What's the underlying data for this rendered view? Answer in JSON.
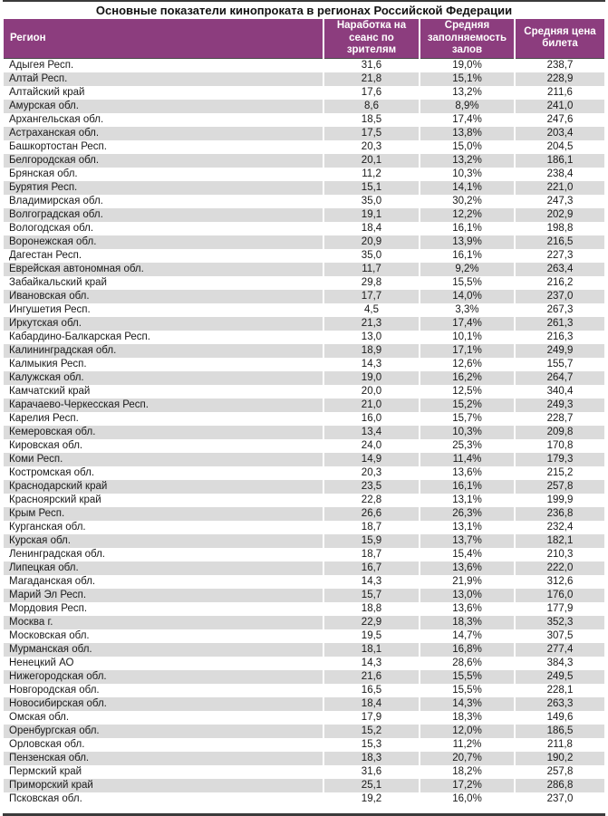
{
  "title": "Основные показатели кинопроката в регионах Российской Федерации",
  "colors": {
    "header_bg": "#8c3d7e",
    "header_text": "#ffffff",
    "stripe": "#dbdbdb",
    "rule_dark": "#3b3b3b"
  },
  "chart_data": {
    "type": "table",
    "title": "Основные показатели кинопроката в регионах Российской Федерации",
    "columns": [
      "Регион",
      "Наработка на сеанс по зрителям",
      "Средняя заполняемость залов",
      "Средняя цена билета"
    ],
    "rows": [
      [
        "Адыгея Респ.",
        "31,6",
        "19,0%",
        "238,7"
      ],
      [
        "Алтай Респ.",
        "21,8",
        "15,1%",
        "228,9"
      ],
      [
        "Алтайский край",
        "17,6",
        "13,2%",
        "211,6"
      ],
      [
        "Амурская обл.",
        "8,6",
        "8,9%",
        "241,0"
      ],
      [
        "Архангельская обл.",
        "18,5",
        "17,4%",
        "247,6"
      ],
      [
        "Астраханская обл.",
        "17,5",
        "13,8%",
        "203,4"
      ],
      [
        "Башкортостан Респ.",
        "20,3",
        "15,0%",
        "204,5"
      ],
      [
        "Белгородская обл.",
        "20,1",
        "13,2%",
        "186,1"
      ],
      [
        "Брянская обл.",
        "11,2",
        "10,3%",
        "238,4"
      ],
      [
        "Бурятия Респ.",
        "15,1",
        "14,1%",
        "221,0"
      ],
      [
        "Владимирская обл.",
        "35,0",
        "30,2%",
        "247,3"
      ],
      [
        "Волгоградская обл.",
        "19,1",
        "12,2%",
        "202,9"
      ],
      [
        "Вологодская обл.",
        "18,4",
        "16,1%",
        "198,8"
      ],
      [
        "Воронежская обл.",
        "20,9",
        "13,9%",
        "216,5"
      ],
      [
        "Дагестан Респ.",
        "35,0",
        "16,1%",
        "227,3"
      ],
      [
        "Еврейская автономная обл.",
        "11,7",
        "9,2%",
        "263,4"
      ],
      [
        "Забайкальский край",
        "29,8",
        "15,5%",
        "216,2"
      ],
      [
        "Ивановская обл.",
        "17,7",
        "14,0%",
        "237,0"
      ],
      [
        "Ингушетия Респ.",
        "4,5",
        "3,3%",
        "267,3"
      ],
      [
        "Иркутская обл.",
        "21,3",
        "17,4%",
        "261,3"
      ],
      [
        "Кабардино-Балкарская Респ.",
        "13,0",
        "10,1%",
        "216,3"
      ],
      [
        "Калининградская обл.",
        "18,9",
        "17,1%",
        "249,9"
      ],
      [
        "Калмыкия Респ.",
        "14,3",
        "12,6%",
        "155,7"
      ],
      [
        "Калужская обл.",
        "19,0",
        "16,2%",
        "264,7"
      ],
      [
        "Камчатский край",
        "20,0",
        "12,5%",
        "340,4"
      ],
      [
        "Карачаево-Черкесская Респ.",
        "21,0",
        "15,2%",
        "249,3"
      ],
      [
        "Карелия Респ.",
        "16,0",
        "15,7%",
        "228,7"
      ],
      [
        "Кемеровская обл.",
        "13,4",
        "10,3%",
        "209,8"
      ],
      [
        "Кировская обл.",
        "24,0",
        "25,3%",
        "170,8"
      ],
      [
        "Коми Респ.",
        "14,9",
        "11,4%",
        "179,3"
      ],
      [
        "Костромская обл.",
        "20,3",
        "13,6%",
        "215,2"
      ],
      [
        "Краснодарский край",
        "23,5",
        "16,1%",
        "257,8"
      ],
      [
        "Красноярский край",
        "22,8",
        "13,1%",
        "199,9"
      ],
      [
        "Крым Респ.",
        "26,6",
        "26,3%",
        "236,8"
      ],
      [
        "Курганская обл.",
        "18,7",
        "13,1%",
        "232,4"
      ],
      [
        "Курская обл.",
        "15,9",
        "13,7%",
        "182,1"
      ],
      [
        "Ленинградская обл.",
        "18,7",
        "15,4%",
        "210,3"
      ],
      [
        "Липецкая обл.",
        "16,7",
        "13,6%",
        "222,0"
      ],
      [
        "Магаданская обл.",
        "14,3",
        "21,9%",
        "312,6"
      ],
      [
        "Марий Эл Респ.",
        "15,7",
        "13,0%",
        "176,0"
      ],
      [
        "Мордовия Респ.",
        "18,8",
        "13,6%",
        "177,9"
      ],
      [
        "Москва г.",
        "22,9",
        "18,3%",
        "352,3"
      ],
      [
        "Московская обл.",
        "19,5",
        "14,7%",
        "307,5"
      ],
      [
        "Мурманская обл.",
        "18,1",
        "16,8%",
        "277,4"
      ],
      [
        "Ненецкий АО",
        "14,3",
        "28,6%",
        "384,3"
      ],
      [
        "Нижегородская обл.",
        "21,6",
        "15,5%",
        "249,5"
      ],
      [
        "Новгородская обл.",
        "16,5",
        "15,5%",
        "228,1"
      ],
      [
        "Новосибирская обл.",
        "18,4",
        "14,3%",
        "263,3"
      ],
      [
        "Омская обл.",
        "17,9",
        "18,3%",
        "149,6"
      ],
      [
        "Оренбургская обл.",
        "15,2",
        "12,0%",
        "186,5"
      ],
      [
        "Орловская обл.",
        "15,3",
        "11,2%",
        "211,8"
      ],
      [
        "Пензенская обл.",
        "18,3",
        "20,7%",
        "190,2"
      ],
      [
        "Пермский край",
        "31,6",
        "18,2%",
        "257,8"
      ],
      [
        "Приморский край",
        "25,1",
        "17,2%",
        "286,8"
      ],
      [
        "Псковская обл.",
        "19,2",
        "16,0%",
        "237,0"
      ]
    ]
  }
}
